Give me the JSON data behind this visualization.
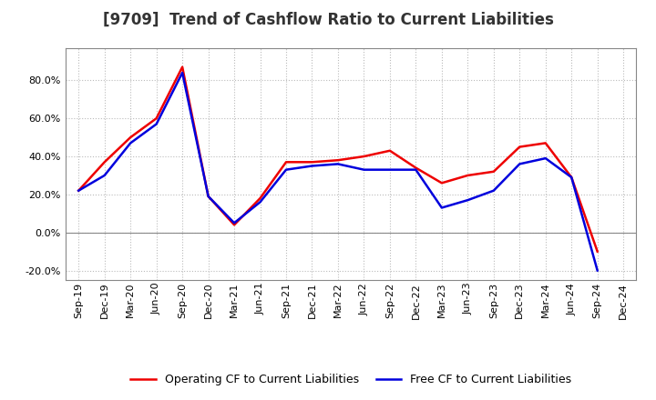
{
  "title": "[9709]  Trend of Cashflow Ratio to Current Liabilities",
  "x_labels": [
    "Sep-19",
    "Dec-19",
    "Mar-20",
    "Jun-20",
    "Sep-20",
    "Dec-20",
    "Mar-21",
    "Jun-21",
    "Sep-21",
    "Dec-21",
    "Mar-22",
    "Jun-22",
    "Sep-22",
    "Dec-22",
    "Mar-23",
    "Jun-23",
    "Sep-23",
    "Dec-23",
    "Mar-24",
    "Jun-24",
    "Sep-24",
    "Dec-24"
  ],
  "operating_cf": [
    0.22,
    0.37,
    0.5,
    0.6,
    0.87,
    0.19,
    0.04,
    0.18,
    0.37,
    0.37,
    0.38,
    0.4,
    0.43,
    0.34,
    0.26,
    0.3,
    0.32,
    0.45,
    0.47,
    0.29,
    -0.1,
    null
  ],
  "free_cf": [
    0.22,
    0.3,
    0.47,
    0.57,
    0.84,
    0.19,
    0.05,
    0.16,
    0.33,
    0.35,
    0.36,
    0.33,
    0.33,
    0.33,
    0.13,
    0.17,
    0.22,
    0.36,
    0.39,
    0.29,
    -0.2,
    null
  ],
  "operating_color": "#ee0000",
  "free_color": "#0000dd",
  "ylim": [
    -0.25,
    0.97
  ],
  "yticks": [
    -0.2,
    0.0,
    0.2,
    0.4,
    0.6,
    0.8
  ],
  "legend_op": "Operating CF to Current Liabilities",
  "legend_fr": "Free CF to Current Liabilities",
  "background_color": "#ffffff",
  "plot_bg_color": "#ffffff",
  "grid_color": "#bbbbbb",
  "title_fontsize": 12,
  "tick_fontsize": 8,
  "legend_fontsize": 9,
  "line_width": 1.8
}
